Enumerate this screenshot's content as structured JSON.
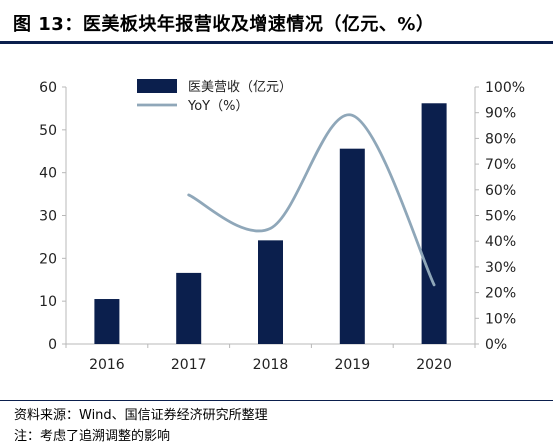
{
  "title": "图 13：医美板块年报营收及增速情况（亿元、%）",
  "footnotes": {
    "source": "资料来源：Wind、国信证券经济研究所整理",
    "note": "注：考虑了追溯调整的影响"
  },
  "colors": {
    "bar": "#0b1f4d",
    "line": "#8fa7b9",
    "rule": "#0b1f4d"
  },
  "chart_data": {
    "type": "bar",
    "categories": [
      "2016",
      "2017",
      "2018",
      "2019",
      "2020"
    ],
    "series": [
      {
        "name": "医美营收（亿元）",
        "type": "bar",
        "axis": "left",
        "values": [
          10.5,
          16.6,
          24.2,
          45.6,
          56.2
        ]
      },
      {
        "name": "YoY（%）",
        "type": "line",
        "axis": "right",
        "smooth": true,
        "values": [
          null,
          58,
          45,
          89,
          23
        ]
      }
    ],
    "y_left": {
      "ylim": [
        0,
        60
      ],
      "ticks": [
        "0",
        "10",
        "20",
        "30",
        "40",
        "50",
        "60"
      ]
    },
    "y_right": {
      "ylim": [
        0,
        100
      ],
      "ticks": [
        "0%",
        "10%",
        "20%",
        "30%",
        "40%",
        "50%",
        "60%",
        "70%",
        "80%",
        "90%",
        "100%"
      ]
    },
    "grid": false,
    "legend": "top-center"
  }
}
